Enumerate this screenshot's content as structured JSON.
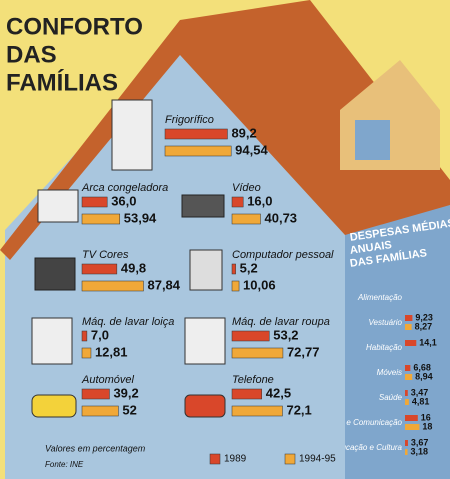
{
  "title": [
    "CONFORTO",
    "DAS",
    "FAMÍLIAS"
  ],
  "colors": [
    "#d9472a",
    "#f0a838"
  ],
  "items": [
    {
      "label": "Frigorífico",
      "values": [
        89.2,
        94.54
      ],
      "value_labels": [
        "89,2",
        "94,54"
      ]
    },
    {
      "label": "Arca congeladora",
      "values": [
        36.0,
        53.94
      ],
      "value_labels": [
        "36,0",
        "53,94"
      ]
    },
    {
      "label": "Vídeo",
      "values": [
        16.0,
        40.73
      ],
      "value_labels": [
        "16,0",
        "40,73"
      ]
    },
    {
      "label": "TV Cores",
      "values": [
        49.8,
        87.84
      ],
      "value_labels": [
        "49,8",
        "87,84"
      ]
    },
    {
      "label": "Computador pessoal",
      "values": [
        5.2,
        10.06
      ],
      "value_labels": [
        "5,2",
        "10,06"
      ]
    },
    {
      "label": "Máq. de lavar loiça",
      "values": [
        7.0,
        12.81
      ],
      "value_labels": [
        "7,0",
        "12,81"
      ]
    },
    {
      "label": "Máq. de lavar roupa",
      "values": [
        53.2,
        72.77
      ],
      "value_labels": [
        "53,2",
        "72,77"
      ]
    },
    {
      "label": "Automóvel",
      "values": [
        39.2,
        52
      ],
      "value_labels": [
        "39,2",
        "52"
      ]
    },
    {
      "label": "Telefone",
      "values": [
        42.5,
        72.1
      ],
      "value_labels": [
        "42,5",
        "72,1"
      ]
    }
  ],
  "note": "Valores em percentagem",
  "source": "Fonte: INE",
  "legend": [
    "1989",
    "1994-95"
  ],
  "side": {
    "title": [
      "DESPESAS MÉDIAS",
      "ANUAIS",
      "DAS FAMÍLIAS"
    ],
    "rows": [
      {
        "label": "Alimentação",
        "values": [],
        "value_labels": []
      },
      {
        "label": "Vestuário",
        "values": [
          9.23,
          8.27
        ],
        "value_labels": [
          "9,23",
          "8,27"
        ]
      },
      {
        "label": "Habitação",
        "values": [
          14.1
        ],
        "value_labels": [
          "14,1"
        ]
      },
      {
        "label": "Móveis",
        "values": [
          6.68,
          8.94
        ],
        "value_labels": [
          "6,68",
          "8,94"
        ]
      },
      {
        "label": "Saúde",
        "values": [
          3.47,
          4.81
        ],
        "value_labels": [
          "3,47",
          "4,81"
        ]
      },
      {
        "label": "Transportes e Comunicação",
        "values": [
          16,
          18
        ],
        "value_labels": [
          "16",
          "18"
        ]
      },
      {
        "label": "Educação e Cultura",
        "values": [
          3.67,
          3.18
        ],
        "value_labels": [
          "3,67",
          "3,18"
        ]
      }
    ]
  }
}
